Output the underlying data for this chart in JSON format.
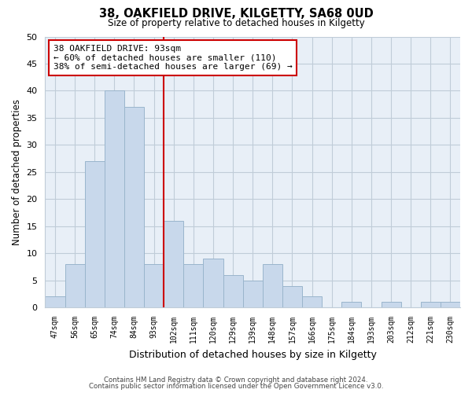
{
  "title": "38, OAKFIELD DRIVE, KILGETTY, SA68 0UD",
  "subtitle": "Size of property relative to detached houses in Kilgetty",
  "xlabel": "Distribution of detached houses by size in Kilgetty",
  "ylabel": "Number of detached properties",
  "bar_labels": [
    "47sqm",
    "56sqm",
    "65sqm",
    "74sqm",
    "84sqm",
    "93sqm",
    "102sqm",
    "111sqm",
    "120sqm",
    "129sqm",
    "139sqm",
    "148sqm",
    "157sqm",
    "166sqm",
    "175sqm",
    "184sqm",
    "193sqm",
    "203sqm",
    "212sqm",
    "221sqm",
    "230sqm"
  ],
  "bar_values": [
    2,
    8,
    27,
    40,
    37,
    8,
    16,
    8,
    9,
    6,
    5,
    8,
    4,
    2,
    0,
    1,
    0,
    1,
    0,
    1,
    1
  ],
  "bar_color": "#c8d8eb",
  "bar_edge_color": "#9ab5cc",
  "highlight_line_color": "#cc0000",
  "annotation_text_line1": "38 OAKFIELD DRIVE: 93sqm",
  "annotation_text_line2": "← 60% of detached houses are smaller (110)",
  "annotation_text_line3": "38% of semi-detached houses are larger (69) →",
  "ylim": [
    0,
    50
  ],
  "yticks": [
    0,
    5,
    10,
    15,
    20,
    25,
    30,
    35,
    40,
    45,
    50
  ],
  "footer1": "Contains HM Land Registry data © Crown copyright and database right 2024.",
  "footer2": "Contains public sector information licensed under the Open Government Licence v3.0.",
  "background_color": "#ffffff",
  "plot_bg_color": "#e8eff7",
  "grid_color": "#c0ccd8"
}
